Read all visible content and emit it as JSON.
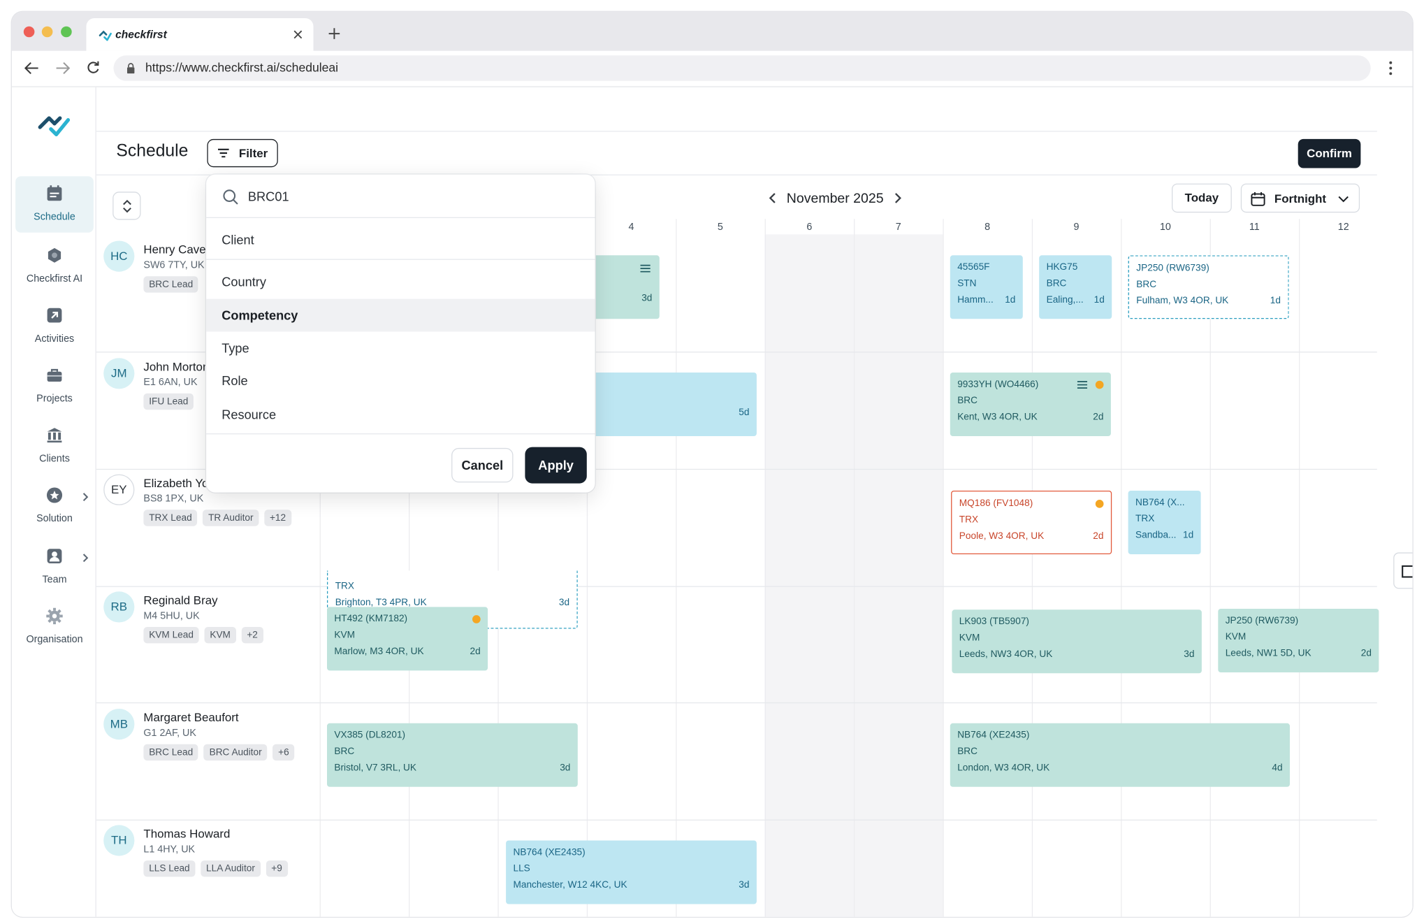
{
  "browser": {
    "tab_title": "checkfirst",
    "url": "https://www.checkfirst.ai/scheduleai"
  },
  "sidebar": {
    "items": [
      {
        "label": "Schedule",
        "icon": "calendar-icon",
        "active": true
      },
      {
        "label": "Checkfirst AI",
        "icon": "ai-icon"
      },
      {
        "label": "Activities",
        "icon": "arrow-up-right-icon"
      },
      {
        "label": "Projects",
        "icon": "briefcase-icon"
      },
      {
        "label": "Clients",
        "icon": "building-icon"
      },
      {
        "label": "Solution",
        "icon": "star-badge-icon",
        "expandable": true
      },
      {
        "label": "Team",
        "icon": "person-icon",
        "expandable": true
      },
      {
        "label": "Organisation",
        "icon": "gear-icon"
      }
    ]
  },
  "header": {
    "title": "Schedule",
    "filter_label": "Filter",
    "confirm_label": "Confirm"
  },
  "calendar": {
    "month_label": "November 2025",
    "today_label": "Today",
    "range_label": "Fortnight",
    "days": [
      "4",
      "5",
      "6",
      "7",
      "8",
      "9",
      "10",
      "11",
      "12"
    ]
  },
  "people": [
    {
      "initials": "HC",
      "name": "Henry Cave",
      "location": "SW6 7TY, UK",
      "tags": [
        "BRC Lead"
      ]
    },
    {
      "initials": "JM",
      "name": "John Morton",
      "location": "E1 6AN, UK",
      "tags": [
        "IFU Lead"
      ]
    },
    {
      "initials": "EY",
      "name": "Elizabeth Yo",
      "location": "BS8 1PX, UK",
      "tags": [
        "TRX Lead",
        "TR Auditor",
        "+12"
      ]
    },
    {
      "initials": "RB",
      "name": "Reginald Bray",
      "location": "M4 5HU, UK",
      "tags": [
        "KVM Lead",
        "KVM",
        "+2"
      ]
    },
    {
      "initials": "MB",
      "name": "Margaret Beaufort",
      "location": "G1 2AF, UK",
      "tags": [
        "BRC Lead",
        "BRC Auditor",
        "+6"
      ]
    },
    {
      "initials": "TH",
      "name": "Thomas Howard",
      "location": "L1 4HY, UK",
      "tags": [
        "LLS Lead",
        "LLA Auditor",
        "+9"
      ]
    }
  ],
  "events": [
    {
      "line1": "",
      "line2": "",
      "line3": "",
      "duration": "3d"
    },
    {
      "line1": "45565F",
      "line2": "STN",
      "line3": "Hamm...",
      "duration": "1d"
    },
    {
      "line1": "HKG75",
      "line2": "BRC",
      "line3": "Ealing,...",
      "duration": "1d"
    },
    {
      "line1": "JP250 (RW6739)",
      "line2": "BRC",
      "line3": "Fulham, W3 4OR, UK",
      "duration": "1d"
    },
    {
      "line1": "",
      "line2": "",
      "line3": "",
      "duration": "5d"
    },
    {
      "line1": "9933YH (WO4466)",
      "line2": "BRC",
      "line3": "Kent, W3 4OR, UK",
      "duration": "2d"
    },
    {
      "line1": "",
      "line2": "TRX",
      "line3": "Brighton, T3 4PR, UK",
      "duration": "3d"
    },
    {
      "line1": "MQ186 (FV1048)",
      "line2": "TRX",
      "line3": "Poole, W3 4OR, UK",
      "duration": "2d"
    },
    {
      "line1": "NB764 (X...",
      "line2": "TRX",
      "line3": "Sandba...",
      "duration": "1d"
    },
    {
      "line1": "HT492 (KM7182)",
      "line2": "KVM",
      "line3": "Marlow, M3 4OR, UK",
      "duration": "2d"
    },
    {
      "line1": "LK903 (TB5907)",
      "line2": "KVM",
      "line3": "Leeds, NW3 4OR, UK",
      "duration": "3d"
    },
    {
      "line1": "JP250 (RW6739)",
      "line2": "KVM",
      "line3": "Leeds, NW1 5D, UK",
      "duration": "2d"
    },
    {
      "line1": "VX385 (DL8201)",
      "line2": "BRC",
      "line3": "Bristol, V7 3RL, UK",
      "duration": "3d"
    },
    {
      "line1": "NB764 (XE2435)",
      "line2": "BRC",
      "line3": "London, W3 4OR, UK",
      "duration": "4d"
    },
    {
      "line1": "NB764 (XE2435)",
      "line2": "LLS",
      "line3": "Manchester, W12 4KC, UK",
      "duration": "3d"
    }
  ],
  "filter_dropdown": {
    "search_value": "BRC01",
    "options": [
      "Client",
      "Country",
      "Competency",
      "Type",
      "Role",
      "Resource"
    ],
    "selected": "Competency",
    "cancel_label": "Cancel",
    "apply_label": "Apply"
  },
  "colors": {
    "primary_dark": "#17212c",
    "accent_teal": "#1d6b86",
    "event_green": "#bfe3dc",
    "event_blue": "#bde6f2",
    "event_red_border": "#e25a3c",
    "status_dot": "#f4a623"
  }
}
